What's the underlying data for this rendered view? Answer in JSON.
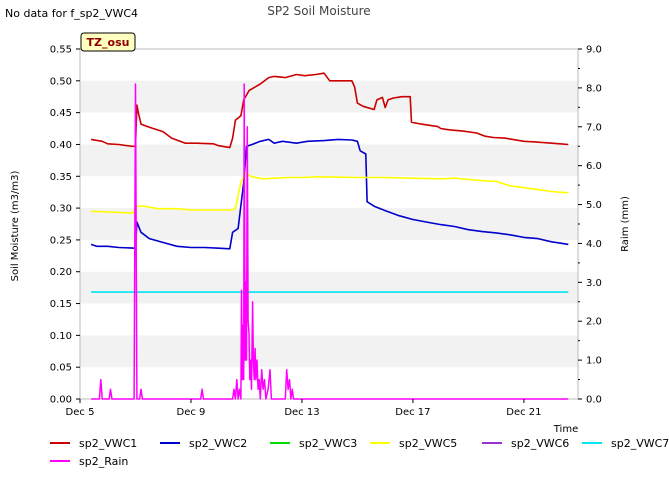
{
  "no_data_text": "No data for f_sp2_VWC4",
  "chart_data": {
    "type": "line",
    "title": "SP2 Soil Moisture",
    "xlabel": "Time",
    "ylabel": "Soil Moisture (m3/m3)",
    "y2label": "Raim (mm)",
    "badge": "TZ_osu",
    "xlim": [
      5.0,
      22.95
    ],
    "ylim": [
      0.0,
      0.55
    ],
    "y2lim": [
      0.0,
      9.0
    ],
    "x_ticks": [
      5,
      9,
      13,
      17,
      21
    ],
    "x_tick_labels": [
      "Dec 5",
      "Dec 9",
      "Dec 13",
      "Dec 17",
      "Dec 21"
    ],
    "y_ticks": [
      0.0,
      0.05,
      0.1,
      0.15,
      0.2,
      0.25,
      0.3,
      0.35,
      0.4,
      0.45,
      0.5,
      0.55
    ],
    "y_tick_labels": [
      "0.00",
      "0.05",
      "0.10",
      "0.15",
      "0.20",
      "0.25",
      "0.30",
      "0.35",
      "0.40",
      "0.45",
      "0.50",
      "0.55"
    ],
    "y2_ticks": [
      0.0,
      1.0,
      2.0,
      3.0,
      4.0,
      5.0,
      6.0,
      7.0,
      8.0,
      9.0
    ],
    "y2_tick_labels": [
      "0.0",
      "1.0",
      "2.0",
      "3.0",
      "4.0",
      "5.0",
      "6.0",
      "7.0",
      "8.0",
      "9.0"
    ],
    "band_color": "#f2f2f2",
    "series": [
      {
        "name": "sp2_VWC1",
        "color": "#cc0000",
        "axis": "left",
        "points": [
          [
            5.4,
            0.408
          ],
          [
            5.8,
            0.405
          ],
          [
            6.0,
            0.401
          ],
          [
            6.4,
            0.4
          ],
          [
            6.9,
            0.397
          ],
          [
            7.0,
            0.398
          ],
          [
            7.05,
            0.462
          ],
          [
            7.1,
            0.45
          ],
          [
            7.2,
            0.432
          ],
          [
            7.5,
            0.427
          ],
          [
            8.0,
            0.42
          ],
          [
            8.3,
            0.41
          ],
          [
            8.8,
            0.402
          ],
          [
            9.2,
            0.402
          ],
          [
            9.8,
            0.401
          ],
          [
            10.0,
            0.398
          ],
          [
            10.4,
            0.395
          ],
          [
            10.5,
            0.41
          ],
          [
            10.6,
            0.438
          ],
          [
            10.8,
            0.445
          ],
          [
            10.9,
            0.47
          ],
          [
            11.1,
            0.485
          ],
          [
            11.5,
            0.495
          ],
          [
            11.8,
            0.505
          ],
          [
            12.0,
            0.507
          ],
          [
            12.4,
            0.505
          ],
          [
            12.8,
            0.51
          ],
          [
            13.1,
            0.508
          ],
          [
            13.5,
            0.51
          ],
          [
            13.8,
            0.512
          ],
          [
            14.0,
            0.5
          ],
          [
            14.3,
            0.5
          ],
          [
            14.8,
            0.5
          ],
          [
            14.9,
            0.49
          ],
          [
            15.0,
            0.465
          ],
          [
            15.2,
            0.46
          ],
          [
            15.6,
            0.455
          ],
          [
            15.7,
            0.47
          ],
          [
            15.9,
            0.474
          ],
          [
            16.0,
            0.458
          ],
          [
            16.1,
            0.47
          ],
          [
            16.3,
            0.473
          ],
          [
            16.6,
            0.475
          ],
          [
            16.9,
            0.475
          ],
          [
            16.95,
            0.435
          ],
          [
            17.3,
            0.432
          ],
          [
            17.9,
            0.428
          ],
          [
            18.0,
            0.425
          ],
          [
            18.3,
            0.423
          ],
          [
            18.8,
            0.421
          ],
          [
            19.3,
            0.418
          ],
          [
            19.6,
            0.413
          ],
          [
            19.9,
            0.411
          ],
          [
            20.3,
            0.41
          ],
          [
            20.6,
            0.408
          ],
          [
            21.0,
            0.405
          ],
          [
            21.4,
            0.404
          ],
          [
            22.0,
            0.402
          ],
          [
            22.3,
            0.401
          ],
          [
            22.6,
            0.4
          ]
        ]
      },
      {
        "name": "sp2_VWC2",
        "color": "#0000cc",
        "axis": "left",
        "points": [
          [
            5.4,
            0.243
          ],
          [
            5.6,
            0.24
          ],
          [
            6.0,
            0.24
          ],
          [
            6.4,
            0.238
          ],
          [
            7.0,
            0.237
          ],
          [
            7.05,
            0.278
          ],
          [
            7.2,
            0.262
          ],
          [
            7.5,
            0.252
          ],
          [
            8.0,
            0.246
          ],
          [
            8.5,
            0.24
          ],
          [
            9.0,
            0.238
          ],
          [
            9.5,
            0.238
          ],
          [
            10.0,
            0.237
          ],
          [
            10.4,
            0.236
          ],
          [
            10.5,
            0.262
          ],
          [
            10.7,
            0.268
          ],
          [
            10.9,
            0.34
          ],
          [
            11.0,
            0.397
          ],
          [
            11.2,
            0.4
          ],
          [
            11.5,
            0.405
          ],
          [
            11.8,
            0.408
          ],
          [
            12.0,
            0.402
          ],
          [
            12.3,
            0.405
          ],
          [
            12.8,
            0.402
          ],
          [
            13.2,
            0.405
          ],
          [
            13.8,
            0.406
          ],
          [
            14.3,
            0.408
          ],
          [
            14.8,
            0.407
          ],
          [
            15.0,
            0.405
          ],
          [
            15.1,
            0.39
          ],
          [
            15.3,
            0.385
          ],
          [
            15.35,
            0.31
          ],
          [
            15.6,
            0.303
          ],
          [
            16.0,
            0.296
          ],
          [
            16.5,
            0.288
          ],
          [
            17.0,
            0.282
          ],
          [
            17.5,
            0.278
          ],
          [
            18.0,
            0.274
          ],
          [
            18.5,
            0.271
          ],
          [
            19.0,
            0.266
          ],
          [
            19.5,
            0.263
          ],
          [
            20.0,
            0.261
          ],
          [
            20.5,
            0.258
          ],
          [
            21.0,
            0.254
          ],
          [
            21.5,
            0.252
          ],
          [
            22.0,
            0.247
          ],
          [
            22.3,
            0.245
          ],
          [
            22.6,
            0.243
          ]
        ]
      },
      {
        "name": "sp2_VWC3",
        "color": "#00dd00",
        "axis": "left",
        "points": []
      },
      {
        "name": "sp2_VWC5",
        "color": "#ffff00",
        "axis": "left",
        "points": [
          [
            5.4,
            0.295
          ],
          [
            6.0,
            0.294
          ],
          [
            6.5,
            0.293
          ],
          [
            6.9,
            0.292
          ],
          [
            7.05,
            0.303
          ],
          [
            7.3,
            0.303
          ],
          [
            7.8,
            0.299
          ],
          [
            8.5,
            0.299
          ],
          [
            9.0,
            0.297
          ],
          [
            9.5,
            0.297
          ],
          [
            10.0,
            0.297
          ],
          [
            10.5,
            0.297
          ],
          [
            10.6,
            0.3
          ],
          [
            10.8,
            0.34
          ],
          [
            10.95,
            0.355
          ],
          [
            11.2,
            0.349
          ],
          [
            11.6,
            0.346
          ],
          [
            12.0,
            0.347
          ],
          [
            12.5,
            0.348
          ],
          [
            13.0,
            0.348
          ],
          [
            13.5,
            0.349
          ],
          [
            14.0,
            0.349
          ],
          [
            15.0,
            0.348
          ],
          [
            16.0,
            0.348
          ],
          [
            17.0,
            0.347
          ],
          [
            18.0,
            0.346
          ],
          [
            18.5,
            0.347
          ],
          [
            19.0,
            0.345
          ],
          [
            19.5,
            0.343
          ],
          [
            20.0,
            0.342
          ],
          [
            20.5,
            0.335
          ],
          [
            21.0,
            0.332
          ],
          [
            21.5,
            0.329
          ],
          [
            22.0,
            0.326
          ],
          [
            22.3,
            0.325
          ],
          [
            22.6,
            0.324
          ]
        ]
      },
      {
        "name": "sp2_VWC6",
        "color": "#9933cc",
        "axis": "left",
        "points": []
      },
      {
        "name": "sp2_VWC7",
        "color": "#00e5ee",
        "axis": "left",
        "points": [
          [
            5.4,
            0.168
          ],
          [
            22.6,
            0.168
          ]
        ]
      },
      {
        "name": "sp2_Rain",
        "color": "#ff00ff",
        "axis": "right",
        "points": [
          [
            5.4,
            0.0
          ],
          [
            5.5,
            0.0
          ],
          [
            5.7,
            0.0
          ],
          [
            5.75,
            0.5
          ],
          [
            5.8,
            0.0
          ],
          [
            6.05,
            0.0
          ],
          [
            6.1,
            0.25
          ],
          [
            6.15,
            0.0
          ],
          [
            6.95,
            0.0
          ],
          [
            7.0,
            8.1
          ],
          [
            7.05,
            0.0
          ],
          [
            7.15,
            0.0
          ],
          [
            7.2,
            0.25
          ],
          [
            7.25,
            0.0
          ],
          [
            9.35,
            0.0
          ],
          [
            9.4,
            0.25
          ],
          [
            9.45,
            0.0
          ],
          [
            10.5,
            0.0
          ],
          [
            10.55,
            0.25
          ],
          [
            10.6,
            0.0
          ],
          [
            10.65,
            0.5
          ],
          [
            10.7,
            0.0
          ],
          [
            10.75,
            0.25
          ],
          [
            10.8,
            0.0
          ],
          [
            10.82,
            2.8
          ],
          [
            10.85,
            0.5
          ],
          [
            10.88,
            1.9
          ],
          [
            10.9,
            0.5
          ],
          [
            10.92,
            8.1
          ],
          [
            10.95,
            1.0
          ],
          [
            10.98,
            3.0
          ],
          [
            11.0,
            1.0
          ],
          [
            11.03,
            7.0
          ],
          [
            11.06,
            2.0
          ],
          [
            11.09,
            1.7
          ],
          [
            11.12,
            0.5
          ],
          [
            11.15,
            1.0
          ],
          [
            11.18,
            0.25
          ],
          [
            11.22,
            2.5
          ],
          [
            11.25,
            1.0
          ],
          [
            11.28,
            0.5
          ],
          [
            11.31,
            1.3
          ],
          [
            11.34,
            0.5
          ],
          [
            11.38,
            1.0
          ],
          [
            11.42,
            0.25
          ],
          [
            11.46,
            0.5
          ],
          [
            11.5,
            0.0
          ],
          [
            11.55,
            0.75
          ],
          [
            11.6,
            0.25
          ],
          [
            11.65,
            0.5
          ],
          [
            11.7,
            0.0
          ],
          [
            11.78,
            0.25
          ],
          [
            11.85,
            0.75
          ],
          [
            11.9,
            0.0
          ],
          [
            12.4,
            0.0
          ],
          [
            12.45,
            0.75
          ],
          [
            12.5,
            0.25
          ],
          [
            12.55,
            0.5
          ],
          [
            12.6,
            0.0
          ],
          [
            12.65,
            0.25
          ],
          [
            12.7,
            0.0
          ],
          [
            22.6,
            0.0
          ]
        ]
      }
    ]
  },
  "legend": {
    "items": [
      "sp2_VWC1",
      "sp2_VWC2",
      "sp2_VWC3",
      "sp2_VWC5",
      "sp2_VWC6",
      "sp2_VWC7",
      "sp2_Rain"
    ]
  }
}
